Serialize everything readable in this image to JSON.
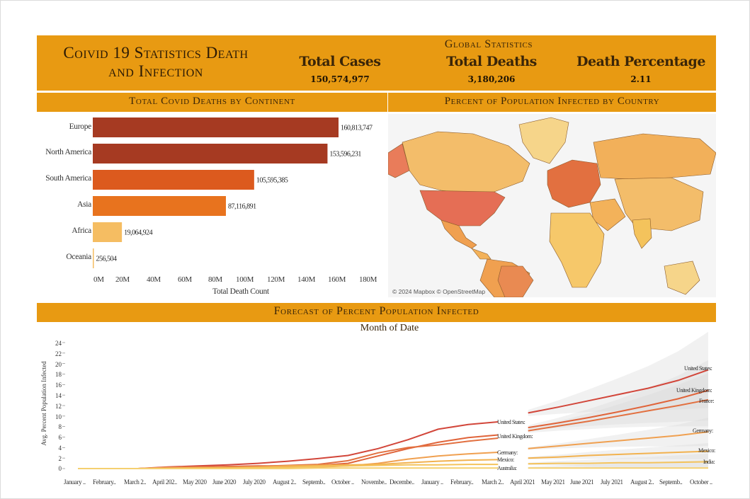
{
  "header": {
    "title_line1": "Coivid 19 Statistics Death",
    "title_line2": "and Infection",
    "global_title": "Global Statistics",
    "kpis": [
      {
        "label": "Total Cases",
        "value": "150,574,977"
      },
      {
        "label": "Total Deaths",
        "value": "3,180,206"
      },
      {
        "label": "Death Percentage",
        "value": "2.11"
      }
    ]
  },
  "continent_chart": {
    "title": "Total Covid Deaths by Continent",
    "xlabel": "Total Death Count",
    "ticks": [
      "0M",
      "20M",
      "40M",
      "60M",
      "80M",
      "100M",
      "120M",
      "140M",
      "160M",
      "180M"
    ],
    "bars": [
      {
        "label": "Europe",
        "value_text": "160,813,747"
      },
      {
        "label": "North America",
        "value_text": "153,596,231"
      },
      {
        "label": "South America",
        "value_text": "105,595,385"
      },
      {
        "label": "Asia",
        "value_text": "87,116,891"
      },
      {
        "label": "Africa",
        "value_text": "19,064,924"
      },
      {
        "label": "Oceania",
        "value_text": "256,504"
      }
    ]
  },
  "map": {
    "title": "Percent of Population Infected by Country",
    "attribution": "© 2024 Mapbox © OpenStreetMap"
  },
  "forecast": {
    "title": "Forecast of Percent Population Infected",
    "subtitle": "Month of Date",
    "ylabel": "Avg. Percent Population Infected",
    "yticks": [
      "24",
      "22",
      "20",
      "18",
      "16",
      "14",
      "12",
      "10",
      "8",
      "6",
      "4",
      "2",
      "0"
    ],
    "months": [
      "January ..",
      "February..",
      "March 2..",
      "April 202..",
      "May 2020",
      "June 2020",
      "July 2020",
      "August 2..",
      "Septemb..",
      "October ..",
      "Novembe..",
      "Decembe..",
      "January ..",
      "February..",
      "March 2..",
      "April 2021",
      "May 2021",
      "June 2021",
      "July 2021",
      "August 2..",
      "Septemb..",
      "October .."
    ],
    "labels_actual": [
      "United States:",
      "United Kingdom:",
      "Germany:",
      "Mexico:",
      "Australia:"
    ],
    "labels_forecast": [
      "United States:",
      "United Kingdom:",
      "France:",
      "Germany:",
      "Mexico:",
      "India:"
    ]
  },
  "chart_data": [
    {
      "type": "bar",
      "title": "Total Covid Deaths by Continent",
      "xlabel": "Total Death Count",
      "ylabel": "",
      "categories": [
        "Europe",
        "North America",
        "South America",
        "Asia",
        "Africa",
        "Oceania"
      ],
      "values": [
        160813747,
        153596231,
        105595385,
        87116891,
        19064924,
        256504
      ],
      "xlim": [
        0,
        180000000
      ],
      "colors": [
        "#a63a22",
        "#a63a22",
        "#dc5a1e",
        "#e8731e",
        "#f5bd62",
        "#f5bd62"
      ]
    },
    {
      "type": "line",
      "title": "Forecast of Percent Population Infected",
      "xlabel": "Month of Date",
      "ylabel": "Avg. Percent Population Infected",
      "ylim": [
        0,
        24
      ],
      "x": [
        "2020-01",
        "2020-02",
        "2020-03",
        "2020-04",
        "2020-05",
        "2020-06",
        "2020-07",
        "2020-08",
        "2020-09",
        "2020-10",
        "2020-11",
        "2020-12",
        "2021-01",
        "2021-02",
        "2021-03",
        "2021-04",
        "2021-05",
        "2021-06",
        "2021-07",
        "2021-08",
        "2021-09",
        "2021-10"
      ],
      "series": [
        {
          "name": "United States",
          "color": "#d2463a",
          "values": [
            0,
            0,
            0,
            0.3,
            0.5,
            0.7,
            1.0,
            1.4,
            1.9,
            2.5,
            3.8,
            5.5,
            7.5,
            8.4,
            8.9,
            10.6,
            11.7,
            12.9,
            14.1,
            15.3,
            16.8,
            18.8
          ]
        },
        {
          "name": "United Kingdom",
          "color": "#e0643a",
          "values": [
            0,
            0,
            0,
            0.2,
            0.3,
            0.4,
            0.5,
            0.5,
            0.6,
            1.0,
            2.4,
            3.8,
            5.0,
            5.9,
            6.4,
            7.8,
            8.7,
            9.7,
            10.8,
            12.0,
            13.3,
            14.9
          ]
        },
        {
          "name": "France",
          "color": "#e27040",
          "values": [
            0,
            0,
            0,
            0.2,
            0.3,
            0.3,
            0.4,
            0.6,
            0.8,
            1.5,
            3.0,
            4.0,
            4.5,
            5.2,
            5.8,
            7.2,
            8.1,
            9.0,
            10.0,
            11.0,
            12.0,
            13.1
          ]
        },
        {
          "name": "Germany",
          "color": "#f0a050",
          "values": [
            0,
            0,
            0,
            0.2,
            0.2,
            0.2,
            0.2,
            0.3,
            0.3,
            0.5,
            1.0,
            1.8,
            2.4,
            2.8,
            3.1,
            3.8,
            4.3,
            4.8,
            5.3,
            5.8,
            6.3,
            7.0
          ]
        },
        {
          "name": "Mexico",
          "color": "#f2b24f",
          "values": [
            0,
            0,
            0,
            0.0,
            0.1,
            0.2,
            0.3,
            0.5,
            0.6,
            0.7,
            0.8,
            1.1,
            1.4,
            1.6,
            1.7,
            2.0,
            2.2,
            2.5,
            2.7,
            2.9,
            3.1,
            3.3
          ]
        },
        {
          "name": "India",
          "color": "#f4c35c",
          "values": [
            0,
            0,
            0,
            0.0,
            0.0,
            0.0,
            0.1,
            0.2,
            0.4,
            0.5,
            0.6,
            0.7,
            0.7,
            0.8,
            0.8,
            0.9,
            1.0,
            1.0,
            1.1,
            1.1,
            1.2,
            1.3
          ]
        },
        {
          "name": "Australia",
          "color": "#f5d070",
          "values": [
            0,
            0,
            0,
            0.0,
            0.0,
            0.0,
            0.0,
            0.0,
            0.1,
            0.1,
            0.1,
            0.1,
            0.1,
            0.1,
            0.1,
            0.1,
            0.1,
            0.1,
            0.1,
            0.1,
            0.1,
            0.1
          ]
        }
      ]
    }
  ]
}
